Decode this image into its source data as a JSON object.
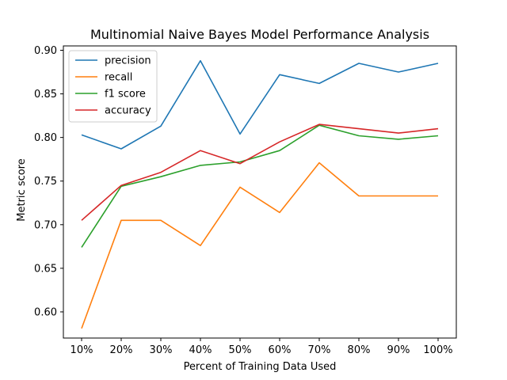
{
  "chart_data": {
    "type": "line",
    "title": "Multinomial Naive Bayes Model Performance Analysis",
    "xlabel": "Percent of Training Data Used",
    "ylabel": "Metric score",
    "categories": [
      "10%",
      "20%",
      "30%",
      "40%",
      "50%",
      "60%",
      "70%",
      "80%",
      "90%",
      "100%"
    ],
    "ylim": [
      0.57,
      0.905
    ],
    "yticks": [
      "0.60",
      "0.65",
      "0.70",
      "0.75",
      "0.80",
      "0.85",
      "0.90"
    ],
    "legend": "top-left",
    "grid": false,
    "series": [
      {
        "name": "precision",
        "color": "#1f77b4",
        "values": [
          0.803,
          0.787,
          0.813,
          0.888,
          0.804,
          0.872,
          0.862,
          0.885,
          0.875,
          0.885
        ]
      },
      {
        "name": "recall",
        "color": "#ff7f0e",
        "values": [
          0.581,
          0.705,
          0.705,
          0.676,
          0.743,
          0.714,
          0.771,
          0.733,
          0.733,
          0.733
        ]
      },
      {
        "name": "f1 score",
        "color": "#2ca02c",
        "values": [
          0.674,
          0.744,
          0.755,
          0.768,
          0.772,
          0.785,
          0.814,
          0.802,
          0.798,
          0.802
        ]
      },
      {
        "name": "accuracy",
        "color": "#d62728",
        "values": [
          0.705,
          0.745,
          0.76,
          0.785,
          0.77,
          0.795,
          0.815,
          0.81,
          0.805,
          0.81
        ]
      }
    ]
  }
}
